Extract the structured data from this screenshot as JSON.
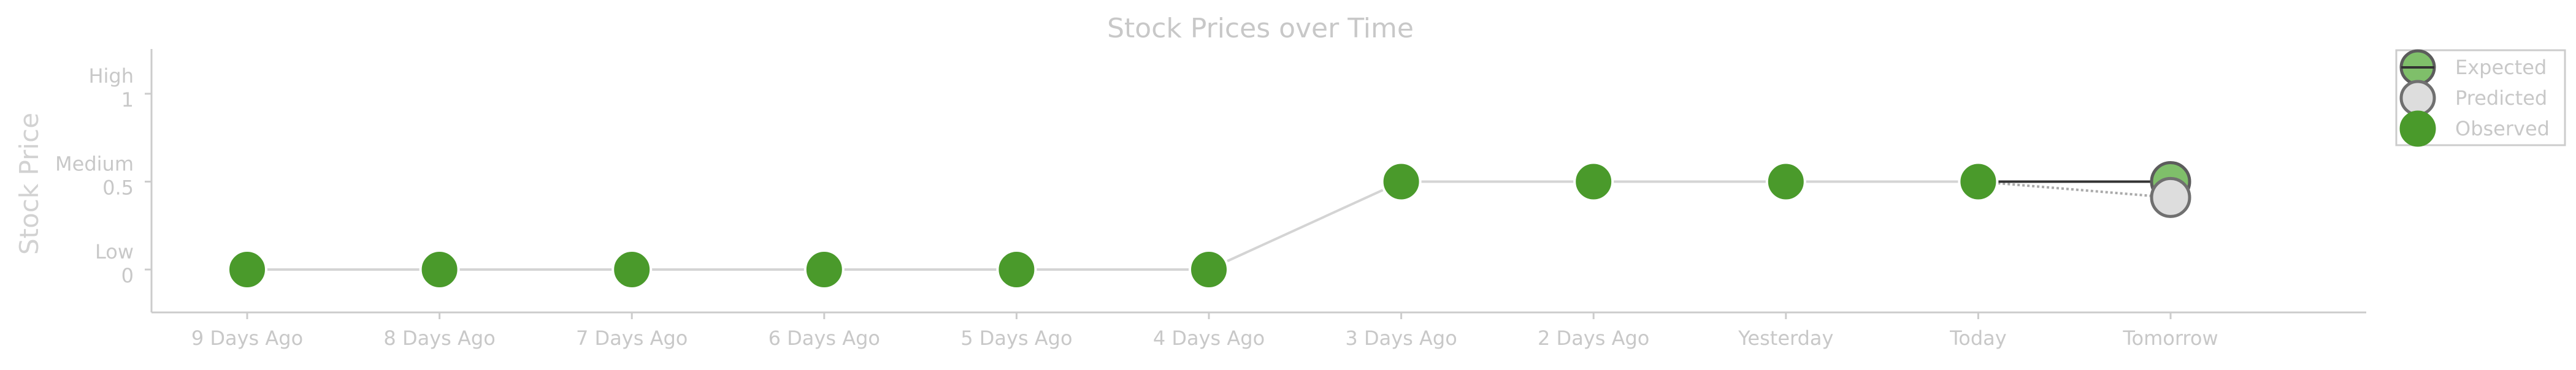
{
  "chart_data": {
    "type": "line",
    "title": "Stock Prices over Time",
    "xlabel": "",
    "ylabel": "Stock Price",
    "categories": [
      "9 Days Ago",
      "8 Days Ago",
      "7 Days Ago",
      "6 Days Ago",
      "5 Days Ago",
      "4 Days Ago",
      "3 Days Ago",
      "2 Days Ago",
      "Yesterday",
      "Today",
      "Tomorrow"
    ],
    "ylim": [
      -0.18,
      1.05
    ],
    "yticks": [
      {
        "value": 0,
        "label_top": "Low",
        "label_bottom": "0"
      },
      {
        "value": 0.5,
        "label_top": "Medium",
        "label_bottom": "0.5"
      },
      {
        "value": 1,
        "label_top": "High",
        "label_bottom": "1"
      }
    ],
    "series": [
      {
        "name": "Observed",
        "x": [
          "9 Days Ago",
          "8 Days Ago",
          "7 Days Ago",
          "6 Days Ago",
          "5 Days Ago",
          "4 Days Ago",
          "3 Days Ago",
          "2 Days Ago",
          "Yesterday",
          "Today"
        ],
        "values": [
          0,
          0,
          0,
          0,
          0,
          0,
          0.5,
          0.5,
          0.5,
          0.5
        ],
        "color": "#4a9a2b",
        "line_color": "#d4d4d4"
      },
      {
        "name": "Expected",
        "x": [
          "Today",
          "Tomorrow"
        ],
        "values": [
          0.5,
          0.5
        ],
        "color": "#7fbf6a",
        "line_color": "#333333"
      },
      {
        "name": "Predicted",
        "x": [
          "Today",
          "Tomorrow"
        ],
        "values": [
          0.5,
          0.41
        ],
        "color": "#dddddd",
        "line_color": "#aaaaaa"
      }
    ],
    "legend_order": [
      "Expected",
      "Predicted",
      "Observed"
    ],
    "legend_position": "top-right",
    "grid": false
  }
}
